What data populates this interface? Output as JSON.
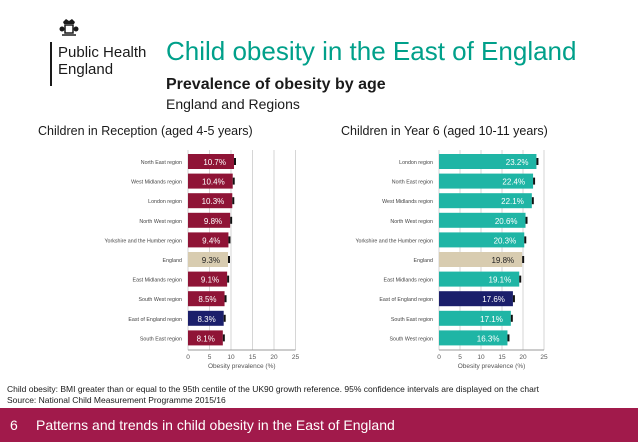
{
  "logo": {
    "name": "Public Health\nEngland",
    "emblem": "royal-crest-icon"
  },
  "title": "Child obesity in the East of England",
  "subtitle": "Prevalence of obesity by age",
  "subtitle2": "England and Regions",
  "colors": {
    "teal": "#1fb5a5",
    "beige": "#d8ccb0",
    "navy": "#1b1f6b",
    "maroon": "#8f1436",
    "footer": "#a11a4b",
    "title": "#00a08a"
  },
  "chart_data": [
    {
      "type": "bar",
      "orientation": "horizontal",
      "title": "Children in Reception (aged 4-5 years)",
      "xlabel": "Obesity prevalence (%)",
      "xlim": [
        0,
        25
      ],
      "xticks": [
        "0",
        "5",
        "10",
        "15",
        "20",
        "25"
      ],
      "categories": [
        "North East region",
        "West Midlands region",
        "London region",
        "North West region",
        "Yorkshire and the Humber region",
        "England",
        "East Midlands region",
        "South West region",
        "East of England region",
        "South East region"
      ],
      "values": [
        10.7,
        10.4,
        10.3,
        9.8,
        9.4,
        9.3,
        9.1,
        8.5,
        8.3,
        8.1
      ],
      "labels": [
        "10.7%",
        "10.4%",
        "10.3%",
        "9.8%",
        "9.4%",
        "9.3%",
        "9.1%",
        "8.5%",
        "8.3%",
        "8.1%"
      ],
      "bar_colors": [
        "maroon",
        "maroon",
        "maroon",
        "maroon",
        "maroon",
        "beige",
        "maroon",
        "maroon",
        "navy",
        "maroon"
      ],
      "error_bars": true
    },
    {
      "type": "bar",
      "orientation": "horizontal",
      "title": "Children in Year 6 (aged 10-11 years)",
      "xlabel": "Obesity prevalence (%)",
      "xlim": [
        0,
        25
      ],
      "xticks": [
        "0",
        "5",
        "10",
        "15",
        "20",
        "25"
      ],
      "categories": [
        "London region",
        "North East region",
        "West Midlands region",
        "North West region",
        "Yorkshire and the Humber region",
        "England",
        "East Midlands region",
        "East of England region",
        "South East region",
        "South West region"
      ],
      "values": [
        23.2,
        22.4,
        22.1,
        20.6,
        20.3,
        19.8,
        19.1,
        17.6,
        17.1,
        16.3
      ],
      "labels": [
        "23.2%",
        "22.4%",
        "22.1%",
        "20.6%",
        "20.3%",
        "19.8%",
        "19.1%",
        "17.6%",
        "17.1%",
        "16.3%"
      ],
      "bar_colors": [
        "teal",
        "teal",
        "teal",
        "teal",
        "teal",
        "beige",
        "teal",
        "navy",
        "teal",
        "teal"
      ],
      "error_bars": true
    }
  ],
  "notes": [
    "Child obesity: BMI greater than or equal to the 95th centile of the UK90 growth reference. 95% confidence intervals are displayed on the chart",
    "Source: National Child Measurement Programme 2015/16"
  ],
  "footer": {
    "page": "6",
    "text": "Patterns and trends in child obesity in the East of England"
  }
}
